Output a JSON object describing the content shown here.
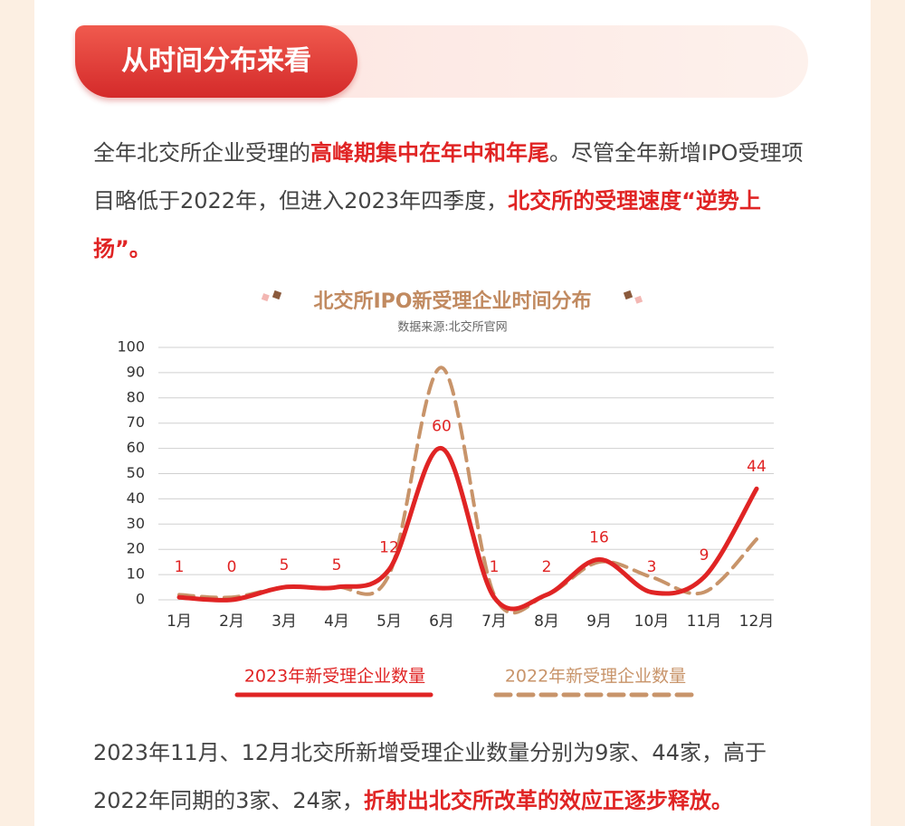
{
  "header": {
    "title": "从时间分布来看"
  },
  "paragraphs": [
    {
      "parts": [
        {
          "text": "全年北交所企业受理的",
          "emphasis": false
        },
        {
          "text": "高峰期集中在年中和年尾",
          "emphasis": true
        },
        {
          "text": "。尽管全年新增IPO受理项目略低于2022年，但进入2023年四季度，",
          "emphasis": false
        },
        {
          "text": "北交所的受理速度“逆势上扬”。",
          "emphasis": true
        }
      ]
    },
    {
      "parts": [
        {
          "text": "2023年11月、12月北交所新增受理企业数量分别为9家、44家，高于2022年同期的3家、24家，",
          "emphasis": false
        },
        {
          "text": "折射出北交所改革的效应正逐步释放。",
          "emphasis": true
        }
      ]
    }
  ],
  "chart_data": {
    "type": "line",
    "title": "北交所IPO新受理企业时间分布",
    "subtitle": "数据来源:北交所官网",
    "categories": [
      "1月",
      "2月",
      "3月",
      "4月",
      "5月",
      "6月",
      "7月",
      "8月",
      "9月",
      "10月",
      "11月",
      "12月"
    ],
    "series": [
      {
        "name": "2023年新受理企业数量",
        "color": "#e02424",
        "style": "solid",
        "values": [
          1,
          0,
          5,
          5,
          12,
          60,
          1,
          2,
          16,
          3,
          9,
          44
        ]
      },
      {
        "name": "2022年新受理企业数量",
        "color": "#c8946a",
        "style": "dashed",
        "values": [
          2,
          1,
          5,
          5,
          10,
          92,
          2,
          2,
          15,
          9,
          3,
          24
        ]
      }
    ],
    "ylim": [
      0,
      100
    ],
    "yticks": [
      0,
      10,
      20,
      30,
      40,
      50,
      60,
      70,
      80,
      90,
      100
    ],
    "grid": true,
    "smooth": true,
    "data_labels_series": 0
  }
}
